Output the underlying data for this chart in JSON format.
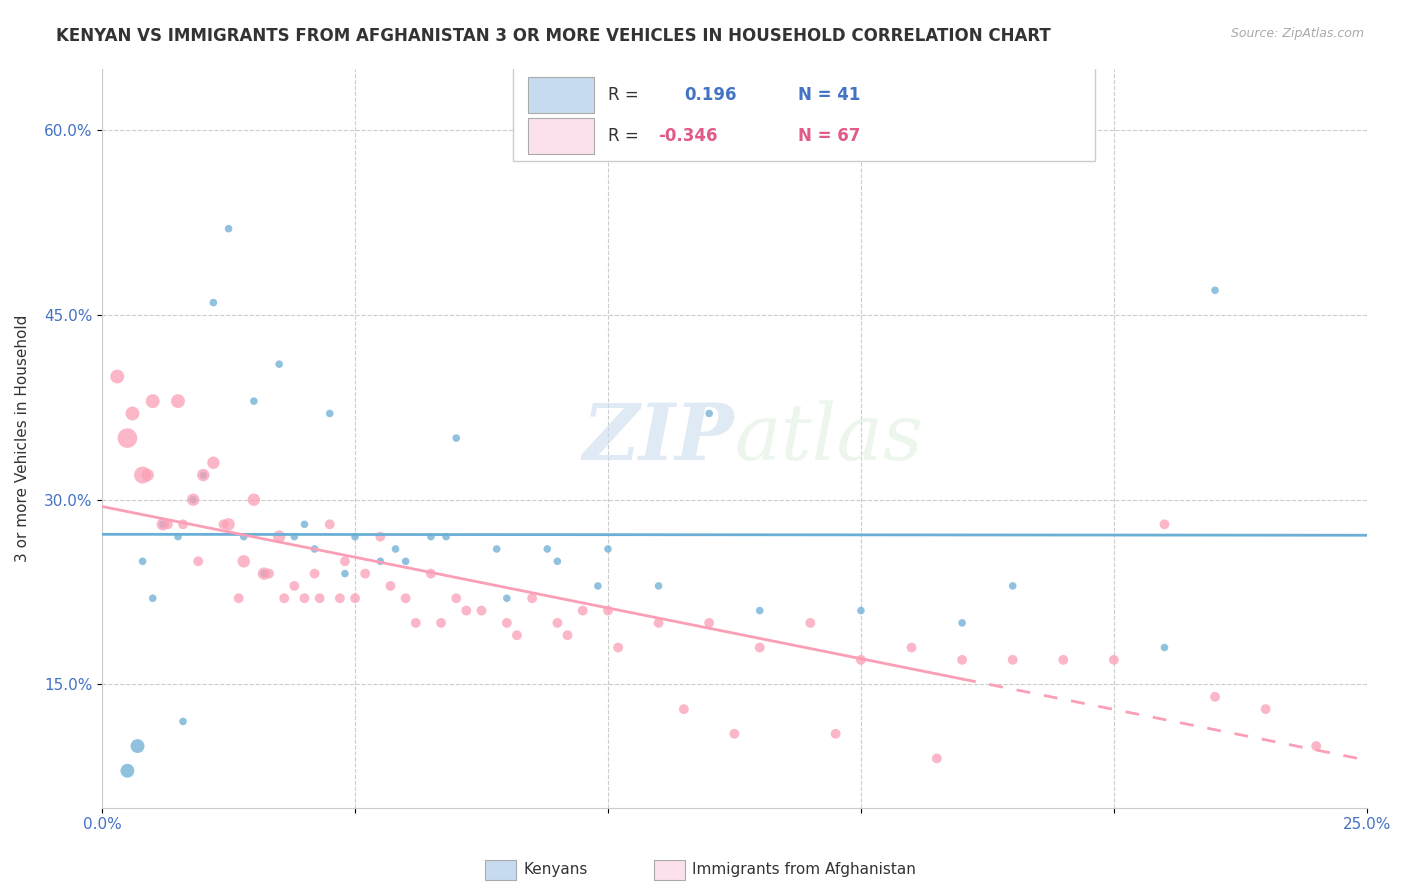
{
  "title": "KENYAN VS IMMIGRANTS FROM AFGHANISTAN 3 OR MORE VEHICLES IN HOUSEHOLD CORRELATION CHART",
  "source": "Source: ZipAtlas.com",
  "ylabel_label": "3 or more Vehicles in Household",
  "legend_label1": "Kenyans",
  "legend_label2": "Immigrants from Afghanistan",
  "color_blue": "#6baed6",
  "color_pink": "#fa9fb5",
  "color_blue_light": "#c6dbef",
  "color_pink_light": "#fce0eb",
  "watermark_zip": "ZIP",
  "watermark_atlas": "atlas",
  "xlim": [
    0.0,
    0.25
  ],
  "ylim": [
    0.05,
    0.65
  ],
  "blue_scatter_x": [
    0.01,
    0.008,
    0.015,
    0.025,
    0.022,
    0.02,
    0.018,
    0.012,
    0.03,
    0.028,
    0.035,
    0.04,
    0.045,
    0.05,
    0.055,
    0.06,
    0.065,
    0.07,
    0.08,
    0.09,
    0.1,
    0.12,
    0.15,
    0.18,
    0.22,
    0.005,
    0.007,
    0.016,
    0.032,
    0.038,
    0.042,
    0.048,
    0.058,
    0.068,
    0.078,
    0.088,
    0.098,
    0.11,
    0.13,
    0.17,
    0.21
  ],
  "blue_scatter_y": [
    0.22,
    0.25,
    0.27,
    0.52,
    0.46,
    0.32,
    0.3,
    0.28,
    0.38,
    0.27,
    0.41,
    0.28,
    0.37,
    0.27,
    0.25,
    0.25,
    0.27,
    0.35,
    0.22,
    0.25,
    0.26,
    0.37,
    0.21,
    0.23,
    0.47,
    0.08,
    0.1,
    0.12,
    0.24,
    0.27,
    0.26,
    0.24,
    0.26,
    0.27,
    0.26,
    0.26,
    0.23,
    0.23,
    0.21,
    0.2,
    0.18
  ],
  "blue_scatter_sizes": [
    30,
    30,
    30,
    30,
    30,
    30,
    30,
    30,
    30,
    30,
    30,
    30,
    30,
    30,
    30,
    30,
    30,
    30,
    30,
    30,
    30,
    30,
    30,
    30,
    30,
    100,
    100,
    30,
    30,
    30,
    30,
    30,
    30,
    30,
    30,
    30,
    30,
    30,
    30,
    30,
    30
  ],
  "pink_scatter_x": [
    0.005,
    0.008,
    0.01,
    0.012,
    0.015,
    0.018,
    0.02,
    0.022,
    0.025,
    0.028,
    0.03,
    0.032,
    0.035,
    0.038,
    0.04,
    0.042,
    0.045,
    0.048,
    0.05,
    0.055,
    0.06,
    0.065,
    0.07,
    0.075,
    0.08,
    0.085,
    0.09,
    0.095,
    0.1,
    0.11,
    0.12,
    0.13,
    0.14,
    0.15,
    0.16,
    0.17,
    0.18,
    0.19,
    0.2,
    0.21,
    0.22,
    0.23,
    0.24,
    0.003,
    0.006,
    0.009,
    0.013,
    0.016,
    0.019,
    0.024,
    0.027,
    0.033,
    0.036,
    0.043,
    0.047,
    0.052,
    0.057,
    0.062,
    0.067,
    0.072,
    0.082,
    0.092,
    0.102,
    0.115,
    0.125,
    0.145,
    0.165
  ],
  "pink_scatter_y": [
    0.35,
    0.32,
    0.38,
    0.28,
    0.38,
    0.3,
    0.32,
    0.33,
    0.28,
    0.25,
    0.3,
    0.24,
    0.27,
    0.23,
    0.22,
    0.24,
    0.28,
    0.25,
    0.22,
    0.27,
    0.22,
    0.24,
    0.22,
    0.21,
    0.2,
    0.22,
    0.2,
    0.21,
    0.21,
    0.2,
    0.2,
    0.18,
    0.2,
    0.17,
    0.18,
    0.17,
    0.17,
    0.17,
    0.17,
    0.28,
    0.14,
    0.13,
    0.1,
    0.4,
    0.37,
    0.32,
    0.28,
    0.28,
    0.25,
    0.28,
    0.22,
    0.24,
    0.22,
    0.22,
    0.22,
    0.24,
    0.23,
    0.2,
    0.2,
    0.21,
    0.19,
    0.19,
    0.18,
    0.13,
    0.11,
    0.11,
    0.09
  ],
  "pink_scatter_sizes": [
    200,
    150,
    100,
    80,
    100,
    80,
    80,
    80,
    80,
    80,
    80,
    80,
    80,
    50,
    50,
    50,
    50,
    50,
    50,
    50,
    50,
    50,
    50,
    50,
    50,
    50,
    50,
    50,
    50,
    50,
    50,
    50,
    50,
    50,
    50,
    50,
    50,
    50,
    50,
    50,
    50,
    50,
    50,
    100,
    100,
    80,
    50,
    50,
    50,
    50,
    50,
    50,
    50,
    50,
    50,
    50,
    50,
    50,
    50,
    50,
    50,
    50,
    50,
    50,
    50,
    50,
    50
  ]
}
